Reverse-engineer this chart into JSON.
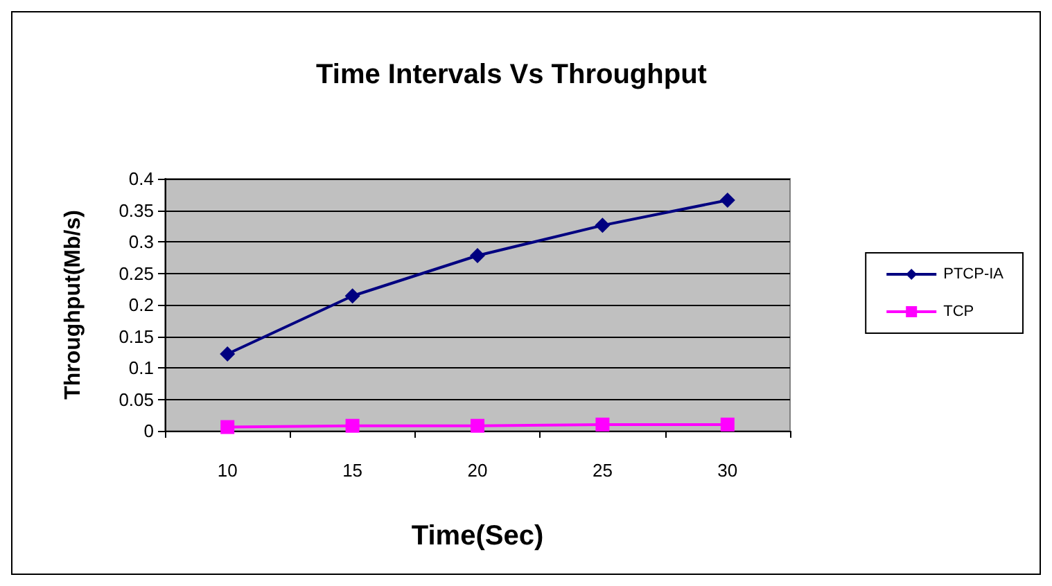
{
  "chart_data": {
    "type": "line",
    "title": "Time Intervals Vs Throughput",
    "xlabel": "Time(Sec)",
    "ylabel": "Throughput(Mb/s)",
    "categories": [
      "10",
      "15",
      "20",
      "25",
      "30"
    ],
    "series": [
      {
        "name": "PTCP-IA",
        "color": "#000080",
        "marker": "diamond",
        "values": [
          0.122,
          0.214,
          0.278,
          0.326,
          0.366
        ]
      },
      {
        "name": "TCP",
        "color": "#ff00ff",
        "marker": "square",
        "values": [
          0.006,
          0.008,
          0.008,
          0.01,
          0.01
        ]
      }
    ],
    "ylim": [
      0,
      0.4
    ],
    "yticks": [
      0,
      0.05,
      0.1,
      0.15,
      0.2,
      0.25,
      0.3,
      0.35,
      0.4
    ],
    "grid": "y",
    "legend": "right"
  }
}
